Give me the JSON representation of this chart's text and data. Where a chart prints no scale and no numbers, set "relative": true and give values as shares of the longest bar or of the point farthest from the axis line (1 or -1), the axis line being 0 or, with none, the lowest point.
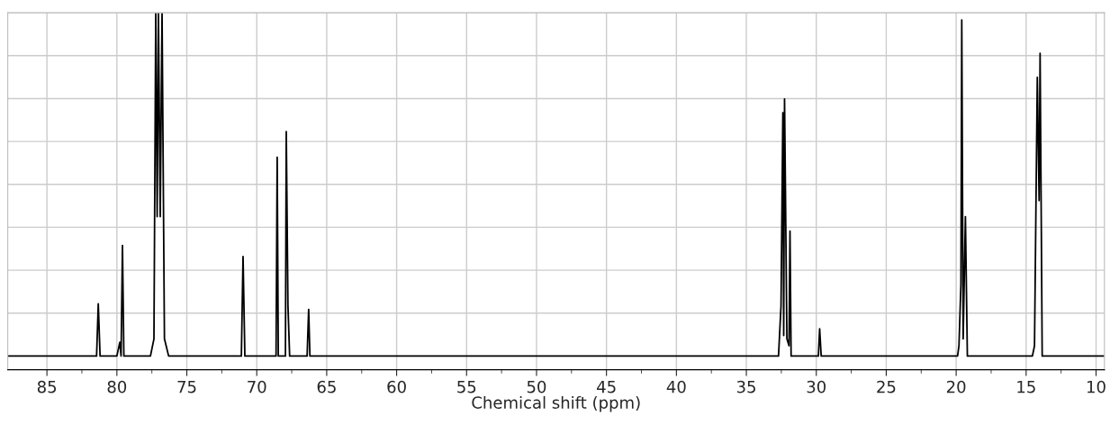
{
  "chart_data": {
    "type": "line",
    "relative": true,
    "xlabel": "Chemical shift (ppm)",
    "xlim": [
      87.8,
      9.4
    ],
    "xticks": [
      85,
      80,
      75,
      70,
      65,
      60,
      55,
      50,
      45,
      40,
      35,
      30,
      25,
      20,
      15,
      10
    ],
    "grid": true,
    "marker": "none",
    "line_style": "solid",
    "series": [
      {
        "color": "#000000",
        "x": [
          87.8,
          81.45,
          81.33,
          81.2,
          80.0,
          79.79,
          79.7,
          79.6,
          79.5,
          78.0,
          77.6,
          77.35,
          77.22,
          77.12,
          77.03,
          76.9,
          76.77,
          76.6,
          76.3,
          71.1,
          70.98,
          70.85,
          68.62,
          68.54,
          68.46,
          67.95,
          67.89,
          67.77,
          67.65,
          66.4,
          66.29,
          66.2,
          32.7,
          32.52,
          32.39,
          32.33,
          32.27,
          32.1,
          31.95,
          31.88,
          31.8,
          29.85,
          29.76,
          29.65,
          19.9,
          19.8,
          19.66,
          19.6,
          19.5,
          19.34,
          19.2,
          14.55,
          14.4,
          14.2,
          14.07,
          14.0,
          13.85,
          9.4
        ],
        "values": [
          0,
          0,
          0.152,
          0,
          0,
          0.04,
          0,
          0.322,
          0,
          0,
          0,
          0.05,
          1,
          0.406,
          1,
          0.406,
          1,
          0.05,
          0,
          0,
          0.29,
          0,
          0,
          0.579,
          0,
          0,
          0.654,
          0.147,
          0,
          0,
          0.136,
          0,
          0,
          0.147,
          0.709,
          0.06,
          0.749,
          0.05,
          0.03,
          0.364,
          0,
          0,
          0.079,
          0,
          0,
          0.03,
          0.209,
          0.979,
          0.05,
          0.406,
          0,
          0,
          0.03,
          0.812,
          0.453,
          0.882,
          0,
          0
        ]
      }
    ]
  }
}
